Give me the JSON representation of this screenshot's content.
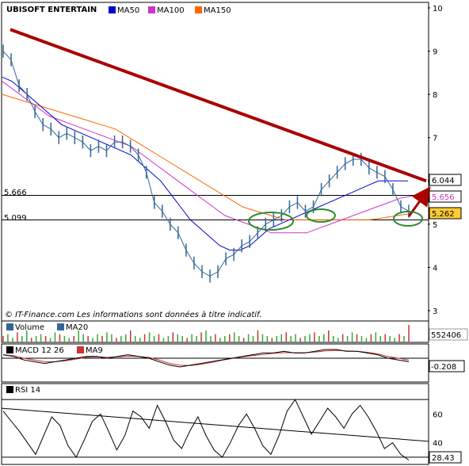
{
  "chart_data": {
    "type": "line",
    "panels": [
      {
        "name": "price",
        "legend": [
          {
            "label": "UBISOFT ENTERTAIN",
            "color": "#336699"
          },
          {
            "label": "MA50",
            "color": "#0000cc"
          },
          {
            "label": "MA100",
            "color": "#cc33cc"
          },
          {
            "label": "MA150",
            "color": "#ff6600"
          }
        ],
        "ylim": [
          3,
          10
        ],
        "yticks": [
          3,
          4,
          5,
          6,
          7,
          8,
          9,
          10
        ],
        "hlines": [
          {
            "value": 5.666,
            "label": "5.666"
          },
          {
            "value": 5.099,
            "label": "5.099"
          }
        ],
        "value_boxes": [
          {
            "value": "6.044",
            "bg": "#ffffff",
            "fg": "#000000"
          },
          {
            "value": "5.656",
            "bg": "#ffffff",
            "fg": "#cc33cc"
          },
          {
            "value": "5.262",
            "bg": "#ffcc33",
            "fg": "#000000"
          }
        ],
        "credit": "© IT-Finance.com    Les informations sont données à titre indicatif.",
        "trendline": {
          "from": [
            0,
            9.5
          ],
          "to": [
            1,
            6.0
          ],
          "color": "#aa0000"
        },
        "series": {
          "close": [
            9.0,
            8.8,
            8.2,
            8.0,
            7.6,
            7.3,
            7.2,
            7.0,
            7.1,
            7.0,
            6.9,
            6.7,
            6.8,
            6.7,
            6.9,
            6.9,
            6.8,
            6.6,
            6.2,
            5.5,
            5.3,
            5.0,
            4.8,
            4.4,
            4.1,
            3.9,
            3.8,
            3.9,
            4.2,
            4.3,
            4.5,
            4.6,
            4.8,
            5.0,
            5.1,
            5.2,
            5.4,
            5.5,
            5.3,
            5.4,
            5.8,
            6.0,
            6.2,
            6.4,
            6.5,
            6.5,
            6.3,
            6.2,
            6.1,
            5.8,
            5.4,
            5.3
          ],
          "ma50": [
            8.4,
            8.3,
            8.1,
            7.9,
            7.7,
            7.5,
            7.3,
            7.2,
            7.1,
            7.0,
            6.9,
            6.8,
            6.7,
            6.6,
            6.4,
            6.2,
            6.0,
            5.7,
            5.4,
            5.1,
            4.9,
            4.7,
            4.5,
            4.4,
            4.4,
            4.5,
            4.7,
            4.9,
            5.0,
            5.1,
            5.2,
            5.3,
            5.4,
            5.5,
            5.6,
            5.7,
            5.8,
            5.9,
            6.0,
            6.0,
            6.0,
            6.0
          ],
          "ma100": [
            8.3,
            8.1,
            7.9,
            7.7,
            7.5,
            7.4,
            7.3,
            7.2,
            7.1,
            7.0,
            6.9,
            6.8,
            6.6,
            6.4,
            6.2,
            6.0,
            5.8,
            5.6,
            5.4,
            5.2,
            5.1,
            5.0,
            4.9,
            4.8,
            4.8,
            4.8,
            4.8,
            4.9,
            5.0,
            5.1,
            5.2,
            5.3,
            5.4,
            5.5,
            5.6,
            5.65
          ],
          "ma150": [
            8.0,
            7.9,
            7.8,
            7.7,
            7.6,
            7.5,
            7.4,
            7.3,
            7.2,
            7.0,
            6.8,
            6.6,
            6.4,
            6.2,
            6.0,
            5.8,
            5.6,
            5.4,
            5.3,
            5.2,
            5.1,
            5.1,
            5.1,
            5.1,
            5.1,
            5.1,
            5.1,
            5.15,
            5.2,
            5.25
          ]
        }
      },
      {
        "name": "volume",
        "legend": [
          {
            "label": "Volume",
            "color": "#336699"
          },
          {
            "label": "MA20",
            "color": "#336699"
          }
        ],
        "value_box": "552406",
        "bars": [
          3,
          4,
          2,
          5,
          3,
          6,
          2,
          3,
          4,
          3,
          2,
          5,
          4,
          3,
          2,
          3,
          6,
          4,
          3,
          2,
          4,
          3,
          5,
          4,
          2,
          3,
          4,
          6,
          3,
          2,
          4,
          5,
          3,
          4,
          2,
          3,
          5,
          4,
          3,
          2,
          4,
          3,
          5,
          6,
          3,
          4,
          2,
          3,
          4,
          5,
          3,
          2,
          4,
          3,
          6,
          4,
          3,
          2,
          3,
          4,
          5,
          3,
          4,
          2,
          3,
          4,
          5,
          3,
          4,
          6,
          3,
          2,
          4,
          3,
          5,
          4,
          3,
          2,
          4,
          5,
          3,
          4,
          3,
          2,
          4,
          3,
          9
        ]
      },
      {
        "name": "macd",
        "legend": [
          {
            "label": "MACD 12 26",
            "color": "#000000"
          },
          {
            "label": "MA9",
            "color": "#cc3333"
          }
        ],
        "value_box": "-0.208",
        "macd": [
          0.2,
          0.1,
          -0.1,
          -0.2,
          -0.3,
          -0.2,
          -0.1,
          0.0,
          0.1,
          0.1,
          0.0,
          0.1,
          0.2,
          0.1,
          0.0,
          -0.2,
          -0.4,
          -0.5,
          -0.4,
          -0.3,
          -0.2,
          -0.1,
          0.0,
          0.1,
          0.2,
          0.3,
          0.3,
          0.4,
          0.3,
          0.3,
          0.4,
          0.5,
          0.5,
          0.4,
          0.4,
          0.3,
          0.2,
          0.0,
          -0.1,
          -0.2
        ],
        "signal": [
          0.2,
          0.15,
          0.0,
          -0.1,
          -0.2,
          -0.2,
          -0.15,
          -0.05,
          0.05,
          0.08,
          0.05,
          0.08,
          0.12,
          0.1,
          0.05,
          -0.1,
          -0.3,
          -0.4,
          -0.42,
          -0.35,
          -0.25,
          -0.12,
          -0.02,
          0.08,
          0.15,
          0.22,
          0.28,
          0.32,
          0.32,
          0.32,
          0.35,
          0.42,
          0.45,
          0.42,
          0.4,
          0.34,
          0.25,
          0.1,
          0.0,
          -0.1
        ]
      },
      {
        "name": "rsi",
        "legend": [
          {
            "label": "RSI 14",
            "color": "#000000"
          }
        ],
        "value_box": "28.43",
        "ylim": [
          25,
          80
        ],
        "yticks": [
          40,
          60
        ],
        "hlines": [
          30,
          70
        ],
        "values": [
          62,
          55,
          48,
          40,
          32,
          45,
          58,
          52,
          38,
          30,
          42,
          55,
          60,
          48,
          35,
          45,
          62,
          58,
          50,
          66,
          55,
          42,
          36,
          48,
          58,
          45,
          35,
          30,
          40,
          52,
          60,
          50,
          38,
          32,
          45,
          62,
          70,
          58,
          46,
          55,
          64,
          58,
          50,
          60,
          66,
          58,
          48,
          36,
          40,
          32,
          28
        ],
        "trendline": {
          "from": [
            0,
            64
          ],
          "to": [
            1,
            41
          ]
        }
      }
    ]
  }
}
